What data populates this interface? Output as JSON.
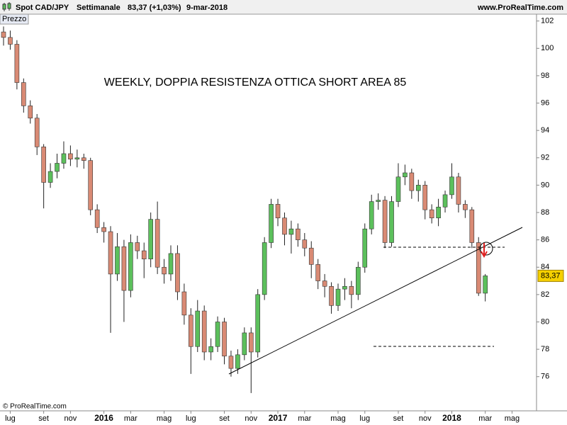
{
  "header": {
    "instrument": "Spot CAD/JPY",
    "period": "Settimanale",
    "quote": "83,37 (+1,03%)",
    "date": "9-mar-2018",
    "site": "www.ProRealTime.com"
  },
  "chart_data": {
    "type": "candlestick",
    "panel_label": "Prezzo",
    "annotation": "WEEKLY, DOPPIA RESISTENZA OTTICA SHORT AREA 85",
    "copyright": "© ProRealTime.com",
    "categories": [
      null,
      "lug",
      null,
      null,
      null,
      null,
      "set",
      null,
      null,
      null,
      "nov",
      null,
      null,
      null,
      null,
      "2016",
      null,
      null,
      null,
      "mar",
      null,
      null,
      null,
      null,
      "mag",
      null,
      null,
      null,
      "lug",
      null,
      null,
      null,
      null,
      "set",
      null,
      null,
      null,
      "nov",
      null,
      null,
      null,
      "2017",
      null,
      null,
      null,
      "mar",
      null,
      null,
      null,
      null,
      "mag",
      null,
      null,
      null,
      "lug",
      null,
      null,
      null,
      null,
      "set",
      null,
      null,
      null,
      "nov",
      null,
      null,
      null,
      "2018",
      null,
      null,
      null,
      null,
      "mar",
      null,
      null,
      null,
      "mag",
      null,
      null,
      null
    ],
    "open": [
      101.2,
      100.8,
      100.3,
      97.5,
      95.8,
      94.9,
      92.8,
      90.2,
      91.0,
      91.6,
      92.3,
      91.9,
      92.0,
      91.8,
      88.2,
      86.9,
      86.6,
      83.5,
      85.5,
      82.3,
      85.8,
      85.2,
      84.6,
      87.5,
      84.0,
      83.5,
      85.0,
      82.2,
      80.5,
      78.2,
      80.8,
      77.8,
      78.2,
      80.0,
      77.5,
      76.6,
      77.6,
      79.2,
      77.8,
      82.0,
      85.8,
      88.6,
      87.6,
      86.4,
      86.8,
      86.0,
      85.4,
      84.2,
      83.0,
      82.6,
      81.2,
      82.4,
      82.6,
      82.0,
      84.0,
      86.8,
      88.8,
      88.9,
      85.8,
      88.8,
      90.6,
      90.9,
      89.6,
      90.0,
      88.2,
      87.6,
      88.4,
      89.3,
      90.6,
      88.6,
      88.2,
      85.8,
      82.1,
      null,
      null,
      null,
      null,
      null,
      null,
      null
    ],
    "high": [
      101.6,
      101.3,
      100.6,
      97.8,
      96.2,
      95.2,
      93.0,
      91.6,
      92.3,
      93.2,
      92.9,
      92.6,
      92.3,
      92.0,
      88.6,
      87.3,
      87.0,
      86.5,
      86.0,
      86.4,
      86.3,
      85.8,
      88.0,
      88.8,
      84.6,
      85.6,
      85.6,
      82.8,
      81.0,
      81.6,
      81.2,
      78.8,
      80.4,
      80.3,
      77.9,
      78.0,
      79.6,
      79.6,
      82.4,
      86.2,
      89.0,
      89.0,
      88.0,
      87.4,
      87.2,
      86.5,
      85.9,
      84.6,
      83.5,
      82.9,
      82.8,
      83.2,
      83.0,
      84.4,
      87.2,
      89.3,
      89.4,
      89.2,
      89.2,
      91.6,
      91.5,
      91.2,
      90.4,
      90.3,
      88.6,
      89.0,
      89.6,
      91.6,
      90.9,
      88.9,
      88.4,
      86.2,
      83.5,
      null,
      null,
      null,
      null,
      null,
      null,
      null
    ],
    "low": [
      100.2,
      99.9,
      97.0,
      95.3,
      94.5,
      92.2,
      88.3,
      89.8,
      90.5,
      91.2,
      91.4,
      91.3,
      91.2,
      87.8,
      86.5,
      85.8,
      79.2,
      83.0,
      80.0,
      81.8,
      84.6,
      83.2,
      84.0,
      83.5,
      82.8,
      83.0,
      81.6,
      79.8,
      76.2,
      77.8,
      77.2,
      77.2,
      77.8,
      76.9,
      76.0,
      76.2,
      77.2,
      74.8,
      77.4,
      81.6,
      85.4,
      87.0,
      85.6,
      85.0,
      85.5,
      84.8,
      83.2,
      82.4,
      81.8,
      80.6,
      80.8,
      81.6,
      81.0,
      81.6,
      83.6,
      86.4,
      88.2,
      85.4,
      85.5,
      88.4,
      90.0,
      89.0,
      88.8,
      87.5,
      87.2,
      87.0,
      88.0,
      89.0,
      88.0,
      87.6,
      85.4,
      81.9,
      81.5,
      null,
      null,
      null,
      null,
      null,
      null,
      null
    ],
    "close": [
      100.8,
      100.3,
      97.5,
      95.8,
      94.9,
      92.8,
      90.2,
      91.0,
      91.6,
      92.3,
      91.9,
      92.0,
      91.8,
      88.2,
      86.9,
      86.6,
      83.5,
      85.5,
      82.3,
      85.8,
      85.2,
      84.6,
      87.5,
      84.0,
      83.5,
      85.0,
      82.2,
      80.5,
      78.2,
      80.8,
      77.8,
      78.2,
      80.0,
      77.5,
      76.6,
      77.6,
      79.2,
      77.8,
      82.0,
      85.8,
      88.6,
      87.6,
      86.4,
      86.8,
      86.0,
      85.4,
      84.2,
      83.0,
      82.6,
      81.2,
      82.4,
      82.6,
      82.0,
      84.0,
      86.8,
      88.8,
      88.9,
      85.8,
      88.8,
      90.6,
      90.9,
      89.6,
      90.0,
      88.2,
      87.6,
      88.4,
      89.3,
      90.6,
      88.6,
      88.2,
      85.8,
      82.1,
      83.37,
      null,
      null,
      null,
      null,
      null,
      null,
      null
    ],
    "up_color": "#5cc05c",
    "down_color": "#d98a74",
    "current_price": {
      "value": 83.37,
      "label": "83,37"
    },
    "ylim": [
      73.5,
      102.5
    ],
    "yticks": [
      76,
      78,
      80,
      82,
      84,
      86,
      88,
      90,
      92,
      94,
      96,
      98,
      100,
      102
    ],
    "grid": false
  }
}
